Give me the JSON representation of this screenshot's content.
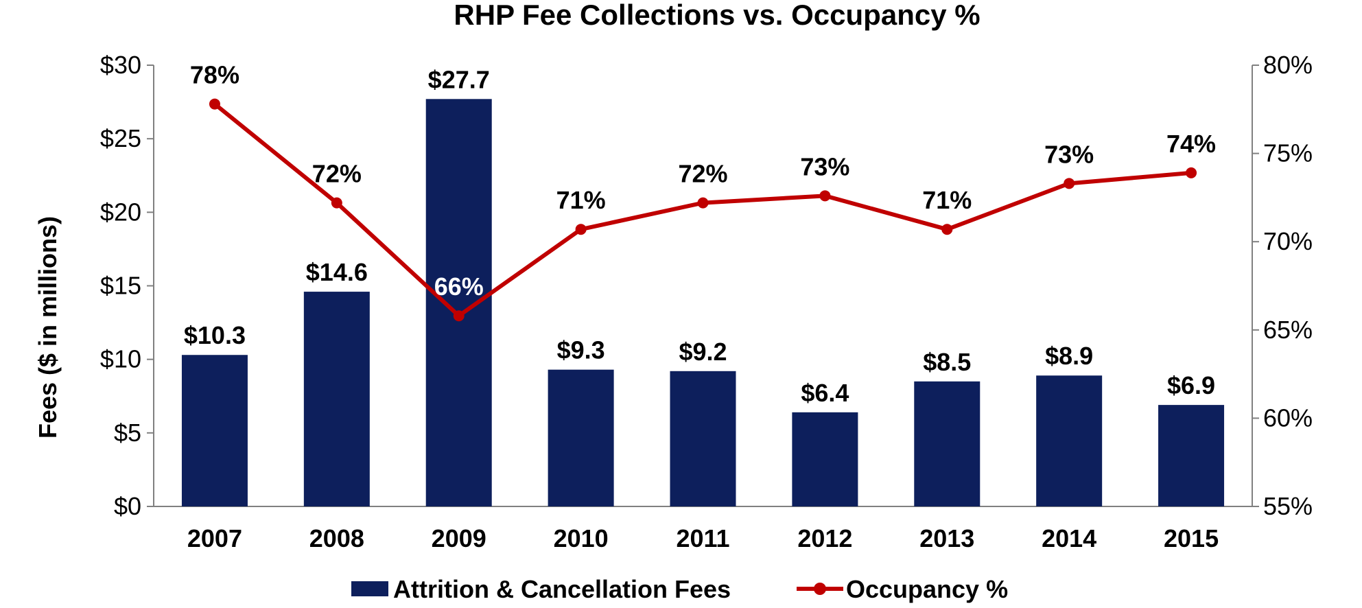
{
  "chart_data": {
    "type": "bar",
    "title": "RHP Fee Collections vs. Occupancy %",
    "ylabel": "Fees ($ in millions)",
    "y2label": "",
    "xlabel": "",
    "categories": [
      "2007",
      "2008",
      "2009",
      "2010",
      "2011",
      "2012",
      "2013",
      "2014",
      "2015"
    ],
    "ylim": [
      0,
      30
    ],
    "y_ticks": [
      "$0",
      "$5",
      "$10",
      "$15",
      "$20",
      "$25",
      "$30"
    ],
    "y_tick_values": [
      0,
      5,
      10,
      15,
      20,
      25,
      30
    ],
    "y2lim": [
      55,
      80
    ],
    "y2_ticks": [
      "55%",
      "60%",
      "65%",
      "70%",
      "75%",
      "80%"
    ],
    "y2_tick_values": [
      55,
      60,
      65,
      70,
      75,
      80
    ],
    "grid": false,
    "legend_position": "bottom",
    "series": [
      {
        "name": "Attrition & Cancellation Fees",
        "type": "bar",
        "axis": "left",
        "color": "#0d1f5c",
        "values": [
          10.3,
          14.6,
          27.7,
          9.3,
          9.2,
          6.4,
          8.5,
          8.9,
          6.9
        ],
        "labels": [
          "$10.3",
          "$14.6",
          "$27.7",
          "$9.3",
          "$9.2",
          "$6.4",
          "$8.5",
          "$8.9",
          "$6.9"
        ]
      },
      {
        "name": "Occupancy %",
        "type": "line",
        "axis": "right",
        "color": "#c00000",
        "values": [
          77.8,
          72.2,
          65.8,
          70.7,
          72.2,
          72.6,
          70.7,
          73.3,
          73.9
        ],
        "labels": [
          "78%",
          "72%",
          "66%",
          "71%",
          "72%",
          "73%",
          "71%",
          "73%",
          "74%"
        ]
      }
    ]
  }
}
